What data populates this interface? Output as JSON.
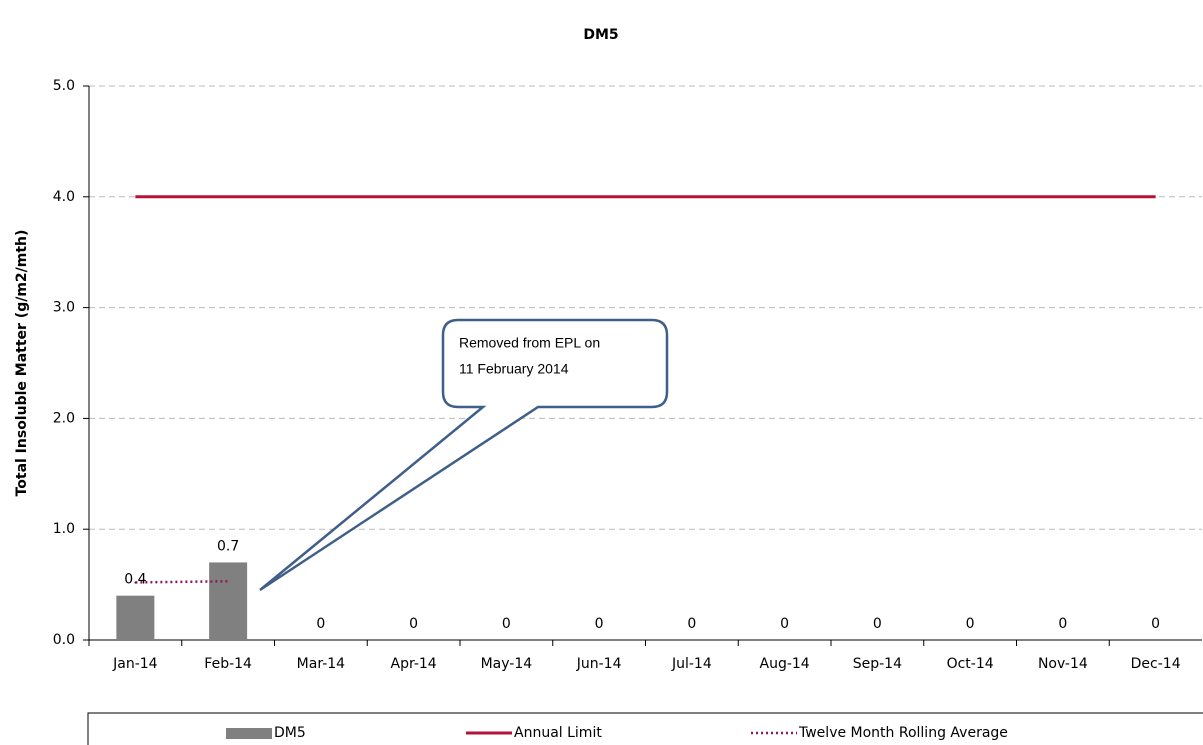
{
  "chart_data": {
    "type": "bar",
    "title": "DM5",
    "y_label": "Total Insoluble Matter (g/m2/mth)",
    "categories": [
      "Jan-14",
      "Feb-14",
      "Mar-14",
      "Apr-14",
      "May-14",
      "Jun-14",
      "Jul-14",
      "Aug-14",
      "Sep-14",
      "Oct-14",
      "Nov-14",
      "Dec-14"
    ],
    "series": [
      {
        "name": "DM5",
        "type": "bar",
        "color": "#808080",
        "values": [
          0.4,
          0.7,
          0,
          0,
          0,
          0,
          0,
          0,
          0,
          0,
          0,
          0
        ]
      },
      {
        "name": "Annual Limit",
        "type": "line",
        "color": "#b5123a",
        "values": [
          4,
          4,
          4,
          4,
          4,
          4,
          4,
          4,
          4,
          4,
          4,
          4
        ]
      },
      {
        "name": "Twelve Month Rolling Average",
        "type": "dotted",
        "color": "#8b1a5a",
        "values": [
          0.52,
          0.53,
          null,
          null,
          null,
          null,
          null,
          null,
          null,
          null,
          null,
          null
        ]
      }
    ],
    "ylim": [
      0,
      5
    ],
    "yticks": [
      {
        "value": 0,
        "label": "0.0"
      },
      {
        "value": 1,
        "label": "1.0"
      },
      {
        "value": 2,
        "label": "2.0"
      },
      {
        "value": 3,
        "label": "3.0"
      },
      {
        "value": 4,
        "label": "4.0"
      },
      {
        "value": 5,
        "label": "5.0"
      }
    ],
    "grid": true,
    "legend": "bottom",
    "annotations": [
      "Removed from EPL on",
      "11 February 2014"
    ]
  }
}
